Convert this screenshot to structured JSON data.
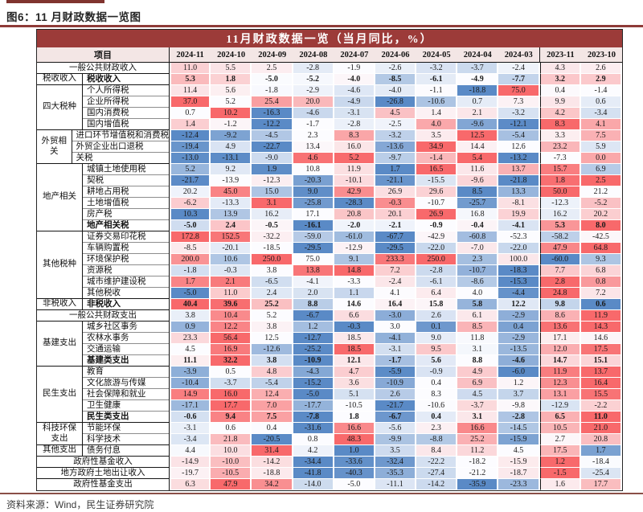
{
  "figure": {
    "title": "图6：11 月财政数据一览图",
    "source": "资料来源：Wind，民生证券研究院"
  },
  "table": {
    "header_title": "11月财政数据一览（当月同比，%）",
    "item_col_header": "项目",
    "columns": [
      "2024-11",
      "2024-10",
      "2024-09",
      "2024-08",
      "2024-07",
      "2024-06",
      "2024-05",
      "2024-04",
      "2024-03",
      "2023-11",
      "2023-10"
    ],
    "colors": {
      "titlebar_bg": "#9c3b39",
      "titlebar_fg": "#ffffff",
      "subheader_bg": "#f3e6e5",
      "heat_positive": "#f8696b",
      "heat_negative": "#5a8ac6",
      "heat_mid": "#fcfcff",
      "accent_line": "#8e3b38"
    },
    "rows": [
      {
        "group": null,
        "label": "一般公共财政收入",
        "bold": false,
        "soft": 0.3,
        "values": [
          "11.0",
          "5.5",
          "2.5",
          "-2.8",
          "-1.9",
          "-2.6",
          "-3.2",
          "-3.7",
          "-2.4",
          "4.3",
          "2.6"
        ]
      },
      {
        "group": "税收收入",
        "label": "税收收入",
        "bold": true,
        "soft": 0.45,
        "values": [
          "5.3",
          "1.8",
          "-5.0",
          "-5.2",
          "-4.0",
          "-8.5",
          "-6.1",
          "-4.9",
          "-7.7",
          "3.2",
          "2.9"
        ]
      },
      {
        "group": "四大税种",
        "label": "个人所得税",
        "bold": false,
        "values": [
          "11.4",
          "5.6",
          "-1.8",
          "-2.9",
          "-4.6",
          "-4.0",
          "-1.1",
          "-18.8",
          "75.0",
          "0.4",
          "-1.4"
        ]
      },
      {
        "group": "四大税种",
        "label": "企业所得税",
        "bold": false,
        "values": [
          "37.0",
          "5.2",
          "25.4",
          "20.0",
          "-4.9",
          "-26.8",
          "-10.6",
          "0.7",
          "7.3",
          "9.9",
          "0.6"
        ]
      },
      {
        "group": "四大税种",
        "label": "国内消费税",
        "bold": false,
        "values": [
          "0.7",
          "10.2",
          "-16.3",
          "-4.6",
          "-3.1",
          "4.5",
          "1.4",
          "2.1",
          "-3.2",
          "4.2",
          "-3.4"
        ]
      },
      {
        "group": "四大税种",
        "label": "国内增值税",
        "bold": false,
        "values": [
          "1.4",
          "-1.2",
          "-12.2",
          "-1.7",
          "-2.8",
          "-2.5",
          "4.0",
          "-9.6",
          "-12.1",
          "8.3",
          "4.1"
        ]
      },
      {
        "group": "外贸相关",
        "label": "进口环节增值税和消费税",
        "bold": false,
        "values": [
          "-12.4",
          "-9.2",
          "-4.5",
          "2.3",
          "8.3",
          "-3.2",
          "3.5",
          "12.5",
          "-5.4",
          "3.3",
          "7.5"
        ]
      },
      {
        "group": "外贸相关",
        "label": "外贸企业出口退税",
        "bold": false,
        "values": [
          "-19.4",
          "4.9",
          "-22.7",
          "13.4",
          "16.0",
          "-13.6",
          "34.9",
          "14.4",
          "12.6",
          "23.2",
          "5.9"
        ]
      },
      {
        "group": "外贸相关",
        "label": "关税",
        "bold": false,
        "values": [
          "-13.0",
          "-13.1",
          "-9.0",
          "4.6",
          "5.2",
          "-9.7",
          "-1.4",
          "5.4",
          "-13.2",
          "-7.3",
          "0.0"
        ]
      },
      {
        "group": "地产相关",
        "label": "城镇土地使用税",
        "bold": false,
        "values": [
          "5.2",
          "9.2",
          "1.9",
          "10.8",
          "11.9",
          "1.7",
          "16.5",
          "11.6",
          "13.7",
          "15.7",
          "6.9"
        ]
      },
      {
        "group": "地产相关",
        "label": "契税",
        "bold": false,
        "values": [
          "-21.7",
          "-13.9",
          "-12.3",
          "-20.3",
          "-10.1",
          "-21.1",
          "-15.5",
          "-9.6",
          "-21.8",
          "1.8",
          "2.5"
        ]
      },
      {
        "group": "地产相关",
        "label": "耕地占用税",
        "bold": false,
        "values": [
          "20.2",
          "45.0",
          "15.0",
          "9.0",
          "42.9",
          "26.9",
          "29.6",
          "8.5",
          "13.3",
          "50.0",
          "21.2"
        ]
      },
      {
        "group": "地产相关",
        "label": "土地增值税",
        "bold": false,
        "values": [
          "-6.2",
          "-13.3",
          "3.1",
          "-25.8",
          "-28.3",
          "-0.3",
          "-10.7",
          "-25.7",
          "-8.1",
          "-12.3",
          "-5.2"
        ]
      },
      {
        "group": "地产相关",
        "label": "房产税",
        "bold": false,
        "values": [
          "10.3",
          "13.9",
          "16.2",
          "17.1",
          "20.8",
          "20.1",
          "26.9",
          "16.8",
          "19.9",
          "16.2",
          "20.2"
        ]
      },
      {
        "group": "地产相关",
        "label": "地产相关税",
        "bold": true,
        "values": [
          "-5.0",
          "2.4",
          "-0.5",
          "-16.1",
          "-2.0",
          "-2.1",
          "-0.9",
          "-0.4",
          "-4.1",
          "5.3",
          "8.0"
        ]
      },
      {
        "group": "其他税种",
        "label": "证券交易印花税",
        "bold": false,
        "values": [
          "172.8",
          "152.5",
          "-32.2",
          "-59.0",
          "-61.0",
          "-67.7",
          "-42.9",
          "-60.8",
          "-52.3",
          "-58.2",
          "-42.5"
        ]
      },
      {
        "group": "其他税种",
        "label": "车辆购置税",
        "bold": false,
        "values": [
          "-8.5",
          "-20.1",
          "-18.5",
          "-29.5",
          "-12.9",
          "-29.5",
          "-22.0",
          "-7.0",
          "-22.0",
          "47.9",
          "64.8"
        ]
      },
      {
        "group": "其他税种",
        "label": "环境保护税",
        "bold": false,
        "values": [
          "200.0",
          "10.6",
          "250.0",
          "75.0",
          "9.1",
          "233.3",
          "250.0",
          "2.3",
          "100.0",
          "-60.0",
          "9.3"
        ]
      },
      {
        "group": "其他税种",
        "label": "资源税",
        "bold": false,
        "values": [
          "-1.8",
          "-0.3",
          "3.8",
          "13.8",
          "14.8",
          "7.2",
          "-2.8",
          "-10.7",
          "-18.3",
          "7.7",
          "6.8"
        ]
      },
      {
        "group": "其他税种",
        "label": "城市维护建设税",
        "bold": false,
        "values": [
          "1.7",
          "2.1",
          "-6.5",
          "-4.1",
          "-3.3",
          "-2.4",
          "-6.1",
          "-8.6",
          "-15.3",
          "2.8",
          "0.8"
        ]
      },
      {
        "group": "其他税种",
        "label": "其他税收",
        "bold": false,
        "values": [
          "-5.0",
          "11.0",
          "2.4",
          "2.0",
          "1.1",
          "4.1",
          "6.4",
          "4.0",
          "-4.4",
          "24.8",
          "7.2"
        ]
      },
      {
        "group": "非税收入",
        "label": "非税收入",
        "bold": true,
        "values": [
          "40.4",
          "39.6",
          "25.2",
          "8.8",
          "14.6",
          "16.4",
          "15.8",
          "5.8",
          "12.2",
          "9.8",
          "0.6"
        ]
      },
      {
        "group": null,
        "label": "一般公共财政支出",
        "bold": false,
        "values": [
          "3.8",
          "10.4",
          "5.2",
          "-6.7",
          "6.6",
          "-3.0",
          "2.6",
          "6.1",
          "-2.9",
          "8.6",
          "11.9"
        ]
      },
      {
        "group": "基建支出",
        "label": "城乡社区事务",
        "bold": false,
        "values": [
          "0.9",
          "12.2",
          "3.8",
          "1.2",
          "-0.3",
          "3.0",
          "0.1",
          "8.5",
          "0.4",
          "13.6",
          "14.3"
        ]
      },
      {
        "group": "基建支出",
        "label": "农林水事务",
        "bold": false,
        "values": [
          "23.3",
          "56.4",
          "12.5",
          "-12.7",
          "18.5",
          "-4.1",
          "9.0",
          "11.8",
          "-2.9",
          "17.1",
          "14.6"
        ]
      },
      {
        "group": "基建支出",
        "label": "交通运输",
        "bold": false,
        "values": [
          "4.5",
          "16.9",
          "-12.6",
          "-25.2",
          "18.5",
          "-3.1",
          "9.5",
          "3.1",
          "-13.5",
          "12.0",
          "17.5"
        ]
      },
      {
        "group": "基建支出",
        "label": "基建类支出",
        "bold": true,
        "values": [
          "11.1",
          "32.2",
          "3.8",
          "-10.9",
          "12.1",
          "-1.7",
          "5.6",
          "8.8",
          "-4.6",
          "14.7",
          "15.1"
        ]
      },
      {
        "group": "民生支出",
        "label": "教育",
        "bold": false,
        "values": [
          "-3.9",
          "0.5",
          "4.8",
          "-4.3",
          "4.7",
          "-5.9",
          "-0.9",
          "4.9",
          "-6.0",
          "11.9",
          "13.7"
        ]
      },
      {
        "group": "民生支出",
        "label": "文化旅游与传媒",
        "bold": false,
        "values": [
          "-10.4",
          "-3.7",
          "-5.4",
          "-15.2",
          "3.6",
          "-10.9",
          "0.4",
          "6.9",
          "1.2",
          "12.3",
          "16.4"
        ]
      },
      {
        "group": "民生支出",
        "label": "社会保障和就业",
        "bold": false,
        "values": [
          "14.9",
          "16.0",
          "12.4",
          "-5.0",
          "5.1",
          "2.6",
          "8.3",
          "4.5",
          "3.7",
          "13.1",
          "15.5"
        ]
      },
      {
        "group": "民生支出",
        "label": "卫生健康",
        "bold": false,
        "values": [
          "-17.1",
          "17.7",
          "7.0",
          "-17.7",
          "-10.5",
          "-21.7",
          "-10.6",
          "-3.7",
          "-9.8",
          "-12.9",
          "-2.2"
        ]
      },
      {
        "group": "民生支出",
        "label": "民生类支出",
        "bold": true,
        "values": [
          "-0.6",
          "9.4",
          "7.5",
          "-7.8",
          "1.8",
          "-6.7",
          "0.4",
          "3.1",
          "-2.8",
          "6.5",
          "11.0"
        ]
      },
      {
        "group": "科技环保支出",
        "label": "节能环保",
        "bold": false,
        "values": [
          "-3.1",
          "0.6",
          "0.4",
          "-31.6",
          "16.6",
          "-5.6",
          "2.3",
          "16.6",
          "-14.5",
          "10.5",
          "21.0"
        ]
      },
      {
        "group": "科技环保支出",
        "label": "科学技术",
        "bold": false,
        "values": [
          "-3.4",
          "21.8",
          "-20.5",
          "0.8",
          "48.3",
          "-9.9",
          "-8.8",
          "25.2",
          "-15.9",
          "2.7",
          "20.8"
        ]
      },
      {
        "group": "其他支出",
        "label": "债务付息",
        "bold": false,
        "values": [
          "4.4",
          "10.0",
          "31.4",
          "4.2",
          "1.0",
          "3.5",
          "8.4",
          "11.2",
          "4.5",
          "17.5",
          "1.7"
        ]
      },
      {
        "group": null,
        "label": "政府性基金收入",
        "bold": false,
        "values": [
          "-14.9",
          "-10.0",
          "-14.2",
          "-34.4",
          "-33.6",
          "-32.4",
          "-22.2",
          "-18.2",
          "-15.9",
          "1.2",
          "-18.4"
        ]
      },
      {
        "group": null,
        "label": "地方政府土地出让收入",
        "bold": false,
        "values": [
          "-19.7",
          "-10.5",
          "-18.8",
          "-41.8",
          "-40.3",
          "-35.3",
          "-27.4",
          "-21.2",
          "-18.7",
          "-1.5",
          "-25.4"
        ]
      },
      {
        "group": null,
        "label": "政府性基金支出",
        "bold": false,
        "values": [
          "6.3",
          "47.9",
          "34.2",
          "-14.0",
          "-5.0",
          "-11.1",
          "-14.2",
          "-35.9",
          "-23.3",
          "1.6",
          "17.7"
        ]
      }
    ]
  }
}
